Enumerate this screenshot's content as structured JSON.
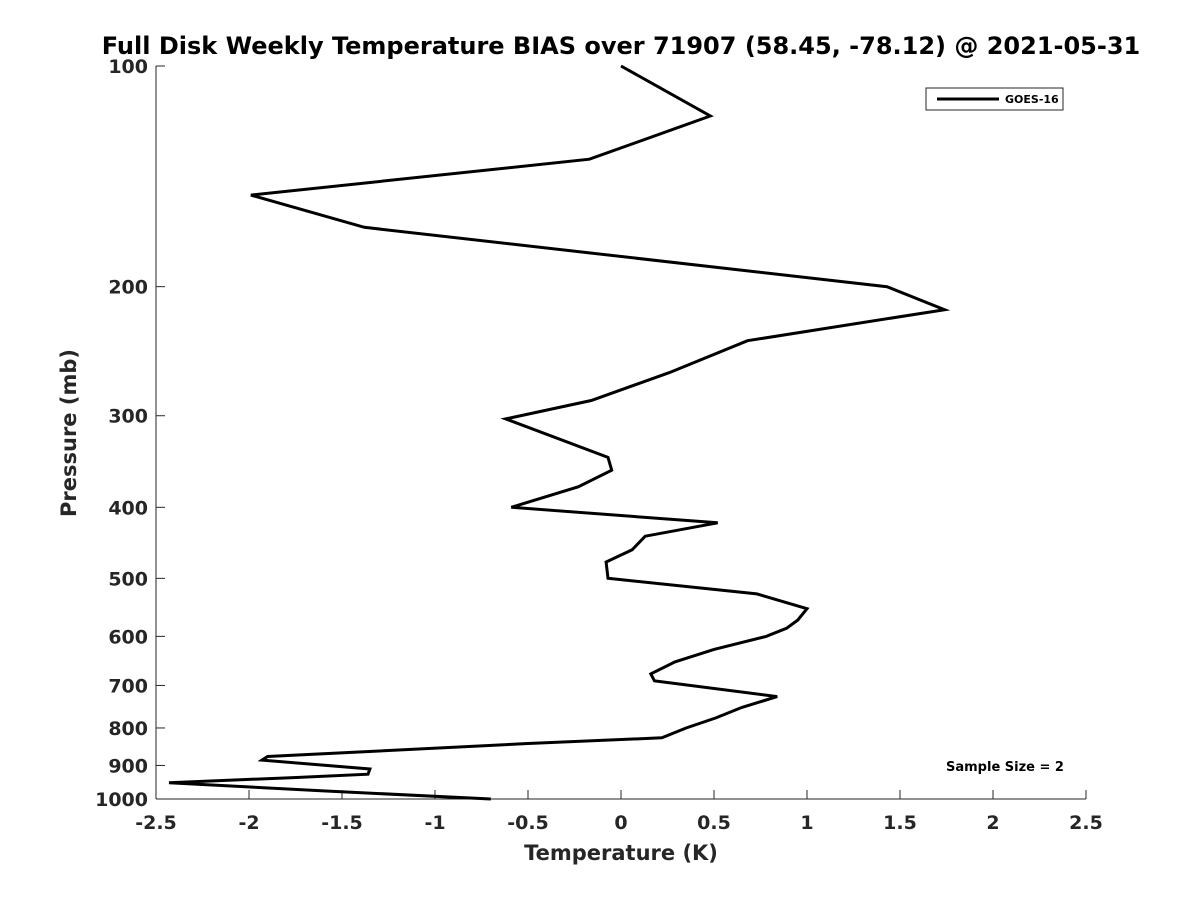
{
  "chart_data": {
    "type": "line",
    "title": "Full Disk Weekly Temperature BIAS over 71907 (58.45, -78.12) @ 2021-05-31",
    "xlabel": "Temperature (K)",
    "ylabel": "Pressure (mb)",
    "xlim": [
      -2.5,
      2.5
    ],
    "ylim": [
      100,
      1000
    ],
    "y_scale": "log",
    "y_reversed": true,
    "x_ticks": [
      "-2.5",
      "-2",
      "-1.5",
      "-1",
      "-0.5",
      "0",
      "0.5",
      "1",
      "1.5",
      "2",
      "2.5"
    ],
    "y_ticks": [
      "100",
      "200",
      "300",
      "400",
      "500",
      "600",
      "700",
      "800",
      "900",
      "1000"
    ],
    "legend_position": "top-right",
    "grid": false,
    "line_color": "#000000",
    "annotation": "Sample Size = 2",
    "series": [
      {
        "name": "GOES-16",
        "points": [
          {
            "x": 0.0,
            "p": 100
          },
          {
            "x": 0.48,
            "p": 117
          },
          {
            "x": -0.17,
            "p": 134
          },
          {
            "x": -1.99,
            "p": 150
          },
          {
            "x": -1.38,
            "p": 166
          },
          {
            "x": 1.43,
            "p": 200
          },
          {
            "x": 1.74,
            "p": 215
          },
          {
            "x": 0.68,
            "p": 237
          },
          {
            "x": 0.26,
            "p": 262
          },
          {
            "x": -0.16,
            "p": 286
          },
          {
            "x": -0.62,
            "p": 303
          },
          {
            "x": -0.07,
            "p": 342
          },
          {
            "x": -0.05,
            "p": 356
          },
          {
            "x": -0.23,
            "p": 375
          },
          {
            "x": -0.59,
            "p": 400
          },
          {
            "x": 0.52,
            "p": 420
          },
          {
            "x": 0.13,
            "p": 438
          },
          {
            "x": 0.06,
            "p": 457
          },
          {
            "x": -0.08,
            "p": 475
          },
          {
            "x": -0.07,
            "p": 500
          },
          {
            "x": 0.73,
            "p": 525
          },
          {
            "x": 1.0,
            "p": 550
          },
          {
            "x": 0.95,
            "p": 570
          },
          {
            "x": 0.89,
            "p": 585
          },
          {
            "x": 0.78,
            "p": 600
          },
          {
            "x": 0.5,
            "p": 625
          },
          {
            "x": 0.29,
            "p": 650
          },
          {
            "x": 0.16,
            "p": 675
          },
          {
            "x": 0.18,
            "p": 690
          },
          {
            "x": 0.84,
            "p": 725
          },
          {
            "x": 0.65,
            "p": 750
          },
          {
            "x": 0.51,
            "p": 775
          },
          {
            "x": 0.35,
            "p": 800
          },
          {
            "x": 0.22,
            "p": 825
          },
          {
            "x": -0.5,
            "p": 840
          },
          {
            "x": -1.3,
            "p": 860
          },
          {
            "x": -1.9,
            "p": 875
          },
          {
            "x": -1.93,
            "p": 885
          },
          {
            "x": -1.35,
            "p": 910
          },
          {
            "x": -1.36,
            "p": 925
          },
          {
            "x": -1.76,
            "p": 935
          },
          {
            "x": -2.43,
            "p": 950
          },
          {
            "x": -1.6,
            "p": 975
          },
          {
            "x": -0.7,
            "p": 1000
          }
        ]
      }
    ]
  }
}
